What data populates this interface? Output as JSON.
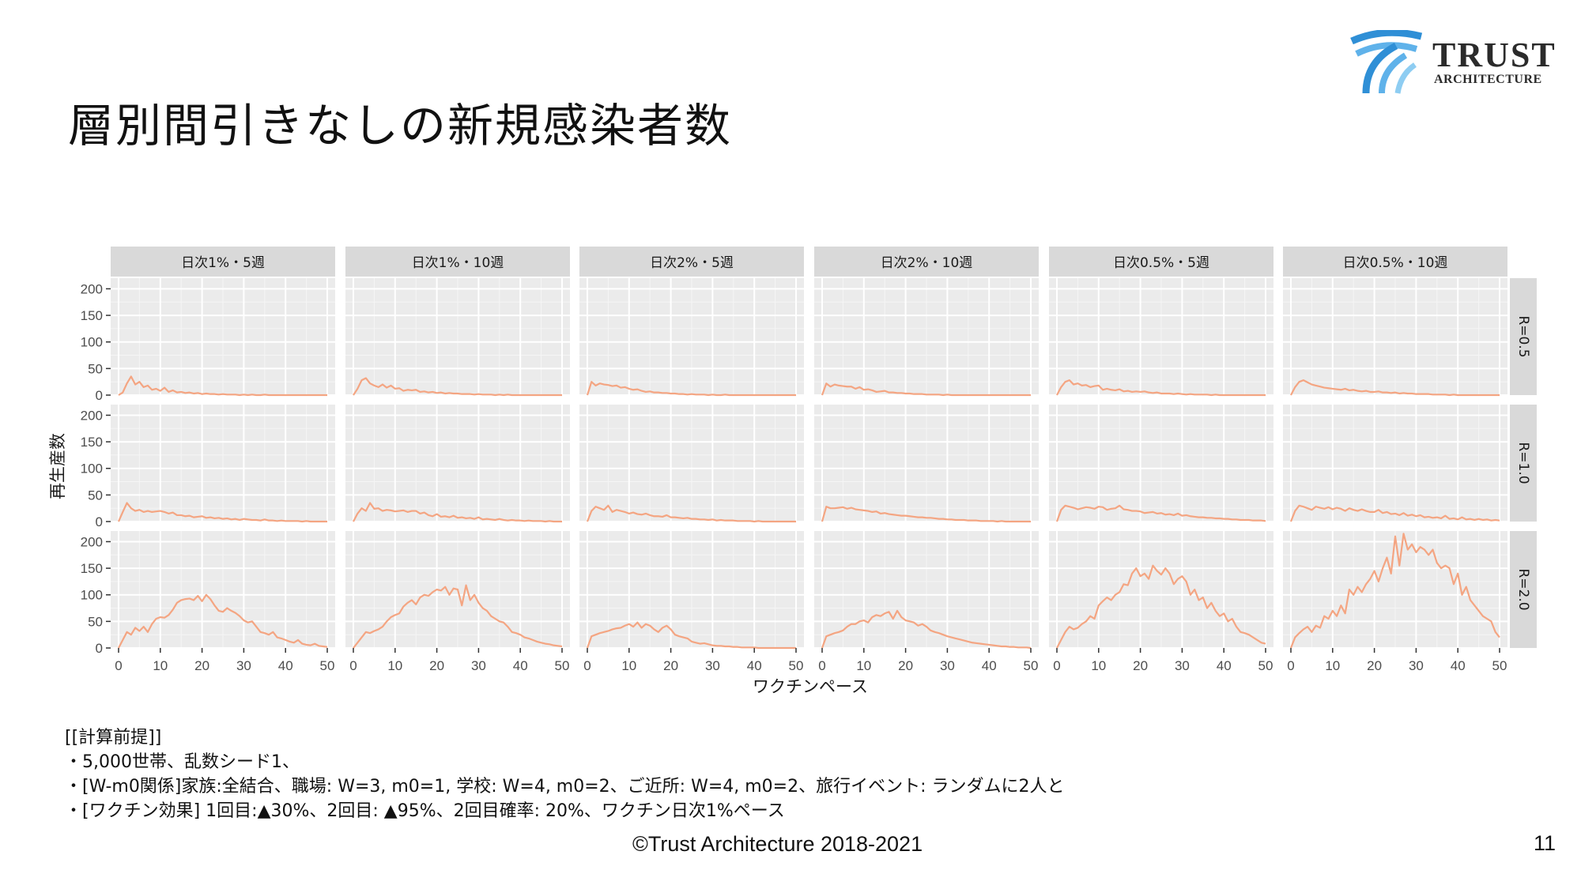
{
  "slide": {
    "title": "層別間引きなしの新規感染者数",
    "footer": "©Trust Architecture 2018-2021",
    "page_number": "11"
  },
  "logo": {
    "word1": "TRUST",
    "word2": "ARCHITECTURE",
    "colors": [
      "#2f8fd6",
      "#5fb2ea",
      "#8ecdf2"
    ]
  },
  "notes": [
    "[[計算前提]]",
    "・5,000世帯、乱数シード1、",
    "・[W-m0関係]家族:全結合、職場: W=3, m0=1, 学校: W=4, m0=2、ご近所: W=4, m0=2、旅行イベント: ランダムに2人と",
    "・[ワクチン効果] 1回目:▲30%、2回目: ▲95%、2回目確率: 20%、ワクチン日次1%ペース"
  ],
  "chart_data": {
    "type": "line",
    "facet_cols": [
      "日次1%・5週",
      "日次1%・10週",
      "日次2%・5週",
      "日次2%・10週",
      "日次0.5%・5週",
      "日次0.5%・10週"
    ],
    "facet_rows": [
      "R=0.5",
      "R=1.0",
      "R=2.0"
    ],
    "xlabel": "ワクチンペース",
    "ylabel": "再生産数",
    "xlim": [
      0,
      50
    ],
    "ylim": [
      0,
      220
    ],
    "xticks": [
      0,
      10,
      20,
      30,
      40,
      50
    ],
    "yticks": [
      0,
      50,
      100,
      150,
      200
    ],
    "line_color": "#f4a582",
    "panel_bg": "#ebebeb",
    "strip_bg": "#d9d9d9",
    "grid": true,
    "panels": [
      [
        [
          0,
          5,
          22,
          35,
          20,
          25,
          15,
          18,
          10,
          12,
          8,
          14,
          6,
          9,
          5,
          6,
          4,
          5,
          3,
          4,
          2,
          3,
          2,
          2,
          1,
          2,
          1,
          1,
          1,
          0,
          1,
          0,
          1,
          0,
          0,
          1,
          0,
          0,
          0,
          0,
          0,
          0,
          0,
          0,
          0,
          0,
          0,
          0,
          0,
          0,
          0
        ],
        [
          0,
          12,
          28,
          32,
          22,
          18,
          15,
          20,
          14,
          18,
          12,
          13,
          8,
          10,
          9,
          10,
          6,
          7,
          5,
          6,
          4,
          5,
          3,
          4,
          3,
          3,
          2,
          2,
          2,
          1,
          2,
          1,
          1,
          1,
          0,
          1,
          0,
          1,
          0,
          0,
          0,
          0,
          0,
          0,
          0,
          0,
          0,
          0,
          0,
          0,
          0
        ],
        [
          0,
          25,
          18,
          22,
          20,
          19,
          17,
          18,
          14,
          15,
          12,
          10,
          11,
          8,
          6,
          7,
          5,
          5,
          4,
          4,
          3,
          3,
          2,
          2,
          1,
          2,
          1,
          1,
          1,
          0,
          1,
          0,
          0,
          1,
          0,
          0,
          0,
          0,
          0,
          0,
          0,
          0,
          0,
          0,
          0,
          0,
          0,
          0,
          0,
          0,
          0
        ],
        [
          0,
          22,
          16,
          20,
          18,
          17,
          16,
          16,
          12,
          15,
          10,
          11,
          9,
          6,
          7,
          8,
          5,
          5,
          4,
          4,
          3,
          3,
          2,
          2,
          2,
          1,
          1,
          1,
          1,
          0,
          1,
          0,
          0,
          0,
          0,
          0,
          0,
          0,
          0,
          0,
          0,
          0,
          0,
          0,
          0,
          0,
          0,
          0,
          0,
          0,
          0
        ],
        [
          0,
          15,
          25,
          28,
          20,
          22,
          18,
          19,
          15,
          17,
          18,
          10,
          12,
          10,
          9,
          11,
          7,
          8,
          6,
          7,
          6,
          7,
          5,
          4,
          5,
          3,
          3,
          3,
          2,
          3,
          2,
          1,
          2,
          1,
          1,
          1,
          1,
          0,
          1,
          0,
          0,
          0,
          0,
          0,
          0,
          0,
          0,
          0,
          0,
          0,
          0
        ],
        [
          0,
          15,
          25,
          28,
          24,
          20,
          18,
          16,
          14,
          13,
          12,
          11,
          10,
          12,
          9,
          10,
          8,
          7,
          8,
          6,
          6,
          7,
          5,
          5,
          4,
          5,
          3,
          4,
          3,
          3,
          2,
          2,
          2,
          2,
          1,
          1,
          1,
          1,
          0,
          1,
          0,
          0,
          0,
          0,
          0,
          0,
          0,
          0,
          0,
          0,
          0
        ]
      ],
      [
        [
          0,
          18,
          35,
          25,
          20,
          22,
          18,
          20,
          18,
          19,
          20,
          18,
          15,
          17,
          12,
          12,
          10,
          11,
          8,
          9,
          10,
          7,
          8,
          6,
          7,
          5,
          6,
          4,
          5,
          3,
          5,
          4,
          3,
          3,
          2,
          4,
          2,
          2,
          1,
          2,
          1,
          1,
          1,
          1,
          0,
          1,
          0,
          0,
          0,
          0,
          0
        ],
        [
          0,
          15,
          25,
          20,
          35,
          24,
          25,
          20,
          22,
          21,
          19,
          20,
          21,
          18,
          20,
          20,
          15,
          17,
          12,
          10,
          14,
          9,
          10,
          8,
          11,
          7,
          8,
          6,
          7,
          5,
          8,
          4,
          5,
          4,
          3,
          5,
          3,
          2,
          3,
          2,
          2,
          1,
          2,
          1,
          1,
          1,
          0,
          1,
          0,
          0,
          0
        ],
        [
          0,
          20,
          28,
          25,
          22,
          30,
          18,
          22,
          20,
          18,
          15,
          17,
          14,
          13,
          15,
          12,
          10,
          10,
          9,
          12,
          8,
          8,
          7,
          6,
          7,
          5,
          5,
          4,
          4,
          3,
          4,
          2,
          3,
          2,
          2,
          2,
          1,
          1,
          1,
          1,
          0,
          1,
          0,
          0,
          0,
          0,
          0,
          0,
          0,
          0,
          0
        ],
        [
          0,
          28,
          25,
          25,
          26,
          27,
          24,
          26,
          23,
          22,
          21,
          20,
          18,
          19,
          15,
          16,
          14,
          13,
          12,
          11,
          11,
          10,
          9,
          8,
          8,
          7,
          7,
          6,
          5,
          5,
          4,
          4,
          3,
          3,
          3,
          2,
          2,
          2,
          1,
          1,
          1,
          1,
          0,
          1,
          0,
          0,
          0,
          0,
          0,
          0,
          0
        ],
        [
          0,
          22,
          30,
          28,
          26,
          23,
          25,
          27,
          26,
          24,
          28,
          27,
          22,
          24,
          25,
          30,
          23,
          22,
          20,
          20,
          19,
          16,
          17,
          18,
          15,
          16,
          13,
          14,
          12,
          15,
          11,
          12,
          10,
          9,
          8,
          8,
          7,
          7,
          6,
          6,
          5,
          5,
          4,
          4,
          3,
          3,
          3,
          2,
          2,
          2,
          1
        ],
        [
          0,
          20,
          30,
          28,
          25,
          22,
          28,
          26,
          24,
          27,
          23,
          26,
          24,
          20,
          25,
          22,
          20,
          23,
          20,
          18,
          18,
          22,
          16,
          18,
          14,
          15,
          12,
          16,
          11,
          13,
          10,
          12,
          8,
          9,
          7,
          8,
          6,
          11,
          5,
          6,
          4,
          8,
          4,
          5,
          3,
          5,
          3,
          4,
          2,
          3,
          2
        ]
      ],
      [
        [
          0,
          15,
          30,
          25,
          38,
          32,
          40,
          30,
          45,
          55,
          58,
          57,
          62,
          72,
          85,
          90,
          92,
          93,
          90,
          98,
          88,
          100,
          92,
          80,
          70,
          68,
          75,
          70,
          66,
          60,
          52,
          48,
          50,
          40,
          30,
          28,
          25,
          30,
          20,
          18,
          15,
          12,
          10,
          15,
          8,
          6,
          5,
          8,
          4,
          3,
          2
        ],
        [
          0,
          10,
          20,
          30,
          28,
          32,
          35,
          40,
          50,
          58,
          62,
          65,
          78,
          85,
          90,
          82,
          95,
          100,
          98,
          105,
          110,
          108,
          115,
          100,
          112,
          110,
          80,
          118,
          90,
          100,
          85,
          75,
          70,
          60,
          55,
          50,
          48,
          40,
          30,
          28,
          25,
          20,
          18,
          15,
          12,
          10,
          8,
          7,
          5,
          4,
          3
        ],
        [
          0,
          22,
          25,
          28,
          30,
          32,
          35,
          37,
          38,
          42,
          45,
          40,
          48,
          38,
          45,
          42,
          35,
          30,
          38,
          42,
          35,
          25,
          22,
          20,
          18,
          12,
          10,
          8,
          9,
          7,
          5,
          4,
          4,
          3,
          3,
          2,
          2,
          1,
          1,
          1,
          1,
          0,
          0,
          0,
          0,
          0,
          0,
          0,
          0,
          0,
          0
        ],
        [
          0,
          22,
          25,
          28,
          30,
          33,
          40,
          45,
          45,
          50,
          52,
          48,
          58,
          62,
          60,
          65,
          68,
          55,
          70,
          58,
          52,
          50,
          48,
          42,
          45,
          40,
          33,
          30,
          28,
          25,
          22,
          20,
          18,
          16,
          14,
          12,
          10,
          9,
          8,
          7,
          6,
          5,
          4,
          3,
          3,
          2,
          2,
          1,
          1,
          1,
          0
        ],
        [
          0,
          15,
          30,
          40,
          35,
          38,
          45,
          50,
          60,
          55,
          80,
          88,
          95,
          90,
          100,
          105,
          120,
          118,
          140,
          150,
          135,
          140,
          130,
          155,
          145,
          138,
          150,
          140,
          120,
          130,
          135,
          125,
          100,
          110,
          90,
          95,
          75,
          85,
          70,
          60,
          65,
          50,
          55,
          40,
          30,
          28,
          25,
          20,
          15,
          10,
          8
        ],
        [
          0,
          20,
          28,
          35,
          40,
          30,
          42,
          38,
          60,
          55,
          70,
          60,
          80,
          65,
          110,
          100,
          115,
          105,
          120,
          130,
          145,
          125,
          150,
          170,
          140,
          210,
          155,
          215,
          185,
          195,
          180,
          190,
          185,
          175,
          185,
          160,
          150,
          155,
          150,
          120,
          140,
          100,
          115,
          90,
          80,
          70,
          60,
          55,
          50,
          30,
          20
        ]
      ]
    ]
  }
}
